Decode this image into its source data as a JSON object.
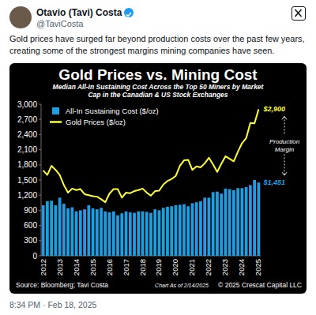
{
  "tweet": {
    "name": "Otavio (Tavi) Costa",
    "handle": "@TaviCosta",
    "text": "Gold prices have surged far beyond production costs over the past few years, creating some of the strongest margins mining companies have seen.",
    "timestamp": "8:34 PM · Feb 18, 2025"
  },
  "chart_data": {
    "type": "bar",
    "title": "Gold Prices vs. Mining Cost",
    "subtitle": "Median All-In Sustaining Cost Across the Top 50 Miners by Market Cap in the Canadian & US Stock Exchanges",
    "categories": [
      "2012",
      null,
      null,
      null,
      "2013",
      null,
      null,
      null,
      "2014",
      null,
      null,
      null,
      "2015",
      null,
      null,
      null,
      "2016",
      null,
      null,
      null,
      "2017",
      null,
      null,
      null,
      "2018",
      null,
      null,
      null,
      "2019",
      null,
      null,
      null,
      "2020",
      null,
      null,
      null,
      "2021",
      null,
      null,
      null,
      "2022",
      null,
      null,
      null,
      "2023",
      null,
      null,
      null,
      "2024",
      null,
      null,
      null,
      "2025"
    ],
    "series": [
      {
        "name": "All-In Sustaining Cost ($/oz)",
        "type": "bar",
        "color": "#1e9ee0",
        "end_label": "$1,451",
        "values": [
          1000,
          1080,
          1090,
          1000,
          1150,
          1030,
          940,
          960,
          880,
          900,
          920,
          1000,
          940,
          920,
          950,
          880,
          860,
          880,
          800,
          840,
          880,
          860,
          850,
          880,
          880,
          870,
          850,
          920,
          900,
          950,
          970,
          980,
          1000,
          1010,
          1020,
          980,
          1040,
          1060,
          1080,
          1150,
          1150,
          1260,
          1270,
          1230,
          1330,
          1320,
          1300,
          1340,
          1340,
          1360,
          1400,
          1500,
          1451
        ]
      },
      {
        "name": "Gold Prices ($/oz)",
        "type": "line",
        "color": "#ffff33",
        "end_label": "$2,900",
        "values": [
          1690,
          1600,
          1780,
          1700,
          1600,
          1400,
          1250,
          1330,
          1300,
          1320,
          1220,
          1200,
          1180,
          1170,
          1120,
          1060,
          1230,
          1320,
          1320,
          1150,
          1250,
          1240,
          1280,
          1300,
          1330,
          1250,
          1190,
          1280,
          1290,
          1410,
          1480,
          1520,
          1580,
          1780,
          1890,
          1900,
          1700,
          1770,
          1750,
          1830,
          1940,
          1810,
          1660,
          1820,
          1970,
          1920,
          1870,
          2060,
          2230,
          2330,
          2630,
          2620,
          2900
        ]
      }
    ],
    "annotation": "Production Margin",
    "ylim": [
      0,
      3000
    ],
    "yticks": [
      0,
      300,
      600,
      900,
      {
        "value": 1200,
        "label": "1,200"
      },
      {
        "value": 1500,
        "label": "1,500"
      },
      {
        "value": 1800,
        "label": "1,800"
      },
      {
        "value": 2100,
        "label": "2,100"
      },
      {
        "value": 2400,
        "label": "2,400"
      },
      {
        "value": 2700,
        "label": "2,700"
      },
      {
        "value": 3000,
        "label": "3,000"
      }
    ],
    "grid": false,
    "legend": "upper left",
    "source": "Source: Bloomberg; Tavi Costa",
    "note": "Chart As of 2/14/2025",
    "copyright": "© 2025 Crescat Capital LLC"
  }
}
